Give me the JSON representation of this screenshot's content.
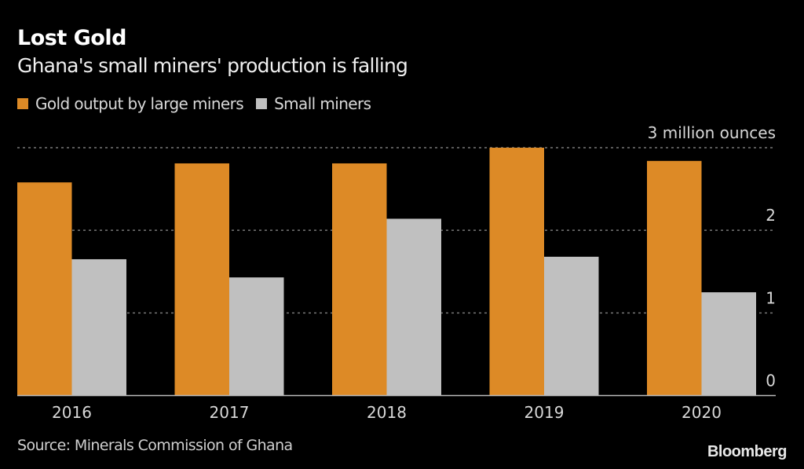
{
  "header": {
    "title": "Lost Gold",
    "subtitle": "Ghana's small miners' production is falling"
  },
  "footer": {
    "source": "Source: Minerals Commission of Ghana",
    "brand": "Bloomberg"
  },
  "colors": {
    "large": "#DD8A26",
    "small": "#C0C0C0",
    "background": "#000000",
    "grid": "#777777"
  },
  "chart_data": {
    "type": "bar",
    "title": "Lost Gold",
    "subtitle": "Ghana's small miners' production is falling",
    "xlabel": "",
    "ylabel": "",
    "unit_label": "3 million ounces",
    "categories": [
      "2016",
      "2017",
      "2018",
      "2019",
      "2020"
    ],
    "series": [
      {
        "name": "Gold output by large miners",
        "color": "#DD8A26",
        "values": [
          2.58,
          2.81,
          2.81,
          3.0,
          2.84
        ]
      },
      {
        "name": "Small miners",
        "color": "#C0C0C0",
        "values": [
          1.65,
          1.43,
          2.14,
          1.68,
          1.25
        ]
      }
    ],
    "ylim": [
      0,
      3
    ],
    "yticks": [
      0,
      1,
      2,
      3
    ],
    "ytick_labels": [
      "0",
      "1",
      "2",
      "3 million ounces"
    ],
    "grid": true,
    "legend": "top-left",
    "source": "Source: Minerals Commission of Ghana"
  }
}
